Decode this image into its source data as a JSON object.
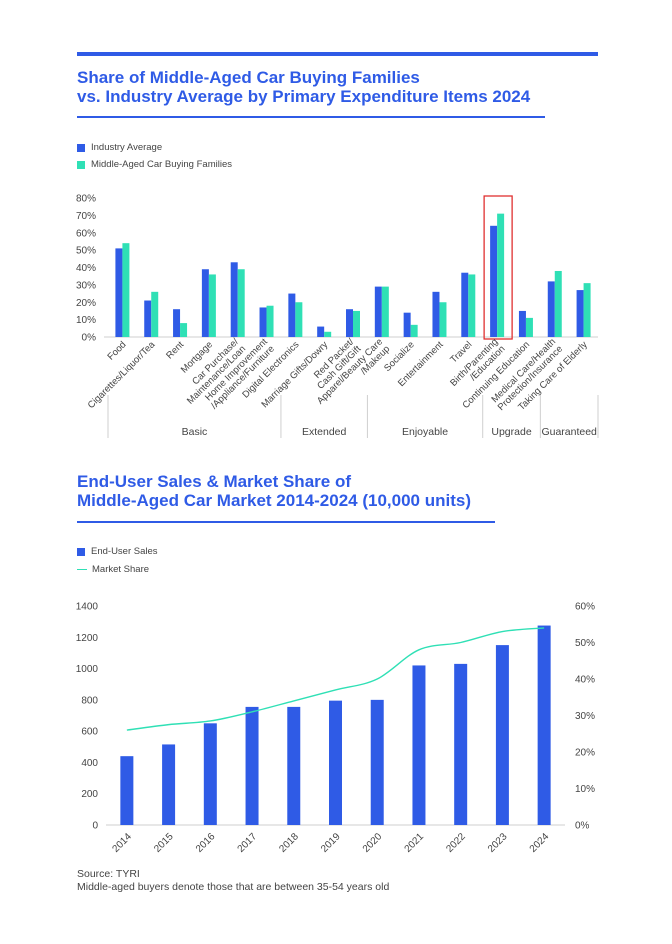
{
  "charts_text": {
    "chart1_title_line1": "Share of Middle-Aged Car Buying Families",
    "chart1_title_line2": "vs. Industry Average by Primary Expenditure Items 2024",
    "chart2_title_line1": "End-User Sales & Market Share of",
    "chart2_title_line2": "Middle-Aged Car Market 2014-2024 (10,000 units)"
  },
  "colors": {
    "industry_average": "#2f5be6",
    "middle_aged": "#2fe0b5",
    "sales_bar": "#2f5be6",
    "market_share_line": "#2fe0b5",
    "highlight_box": "#e03030",
    "title": "#2f5be6"
  },
  "footer": {
    "source": "Source: TYRI",
    "note": "Middle-aged buyers denote those that are between 35-54 years old"
  },
  "chart_data": [
    {
      "type": "bar",
      "title": "Share of Middle-Aged Car Buying Families vs. Industry Average by Primary Expenditure Items 2024",
      "categories": [
        "Food",
        "Cigarettes/Liquor/Tea",
        "Rent",
        "Mortgage",
        "Car Purchase/ Maintenance/Loan",
        "Home Improvement /Appliance/Furniture",
        "Digital Electronics",
        "Marriage Gifts/Dowry",
        "Red Packet/ Cash Gift/Gift",
        "Apparel/Beauty Care /Makeup",
        "Socialize",
        "Entertainment",
        "Travel",
        "Birth/Parenting /Education",
        "Continuing Education",
        "Medical Care/Health Protection/Insurance",
        "Taking Care of Elderly"
      ],
      "category_labels": [
        [
          "Food"
        ],
        [
          "Cigarettes/Liquor/Tea"
        ],
        [
          "Rent"
        ],
        [
          "Mortgage"
        ],
        [
          "Car Purchase/",
          "Maintenance/Loan"
        ],
        [
          "Home Improvement",
          "/Appliance/Furniture"
        ],
        [
          "Digital Electronics"
        ],
        [
          "Marriage Gifts/Dowry"
        ],
        [
          "Red Packet/",
          "Cash Gift/Gift"
        ],
        [
          "Apparel/Beauty Care",
          "/Makeup"
        ],
        [
          "Socialize"
        ],
        [
          "Entertainment"
        ],
        [
          "Travel"
        ],
        [
          "Birth/Parenting",
          "/Education"
        ],
        [
          "Continuing Education"
        ],
        [
          "Medical Care/Health",
          "Protection/Insurance"
        ],
        [
          "Taking Care of Elderly"
        ]
      ],
      "groups": [
        {
          "name": "Basic",
          "start": 0,
          "end": 5
        },
        {
          "name": "Extended",
          "start": 6,
          "end": 8
        },
        {
          "name": "Enjoyable",
          "start": 9,
          "end": 12
        },
        {
          "name": "Upgrade",
          "start": 13,
          "end": 14
        },
        {
          "name": "Guaranteed",
          "start": 15,
          "end": 16
        }
      ],
      "highlight_category": 13,
      "series": [
        {
          "name": "Industry Average",
          "values": [
            51,
            21,
            16,
            39,
            43,
            17,
            25,
            6,
            16,
            29,
            14,
            26,
            37,
            64,
            15,
            32,
            27
          ]
        },
        {
          "name": "Middle-Aged Car Buying Families",
          "values": [
            54,
            26,
            8,
            36,
            39,
            18,
            20,
            3,
            15,
            29,
            7,
            20,
            36,
            71,
            11,
            38,
            31
          ]
        }
      ],
      "ylim": [
        0,
        80
      ],
      "yticks": [
        "0%",
        "10%",
        "20%",
        "30%",
        "40%",
        "50%",
        "60%",
        "70%",
        "80%"
      ],
      "grid": false,
      "legend_position": "top-left"
    },
    {
      "type": "bar",
      "title": "End-User Sales & Market Share of Middle-Aged Car Market 2014-2024 (10,000 units)",
      "categories": [
        "2014",
        "2015",
        "2016",
        "2017",
        "2018",
        "2019",
        "2020",
        "2021",
        "2022",
        "2023",
        "2024"
      ],
      "series": [
        {
          "name": "End-User Sales",
          "type": "bar",
          "axis": "left",
          "values": [
            440,
            515,
            650,
            755,
            755,
            795,
            800,
            1020,
            1030,
            1150,
            1275
          ]
        },
        {
          "name": "Market Share",
          "type": "line",
          "axis": "right",
          "values": [
            26,
            27.5,
            28.5,
            31,
            34,
            37,
            40,
            48,
            50,
            53,
            54
          ]
        }
      ],
      "ylim_left": [
        0,
        1400
      ],
      "ylim_right": [
        0,
        60
      ],
      "yticks_left": [
        "0",
        "200",
        "400",
        "600",
        "800",
        "1000",
        "1200",
        "1400"
      ],
      "yticks_right": [
        "0%",
        "10%",
        "20%",
        "30%",
        "40%",
        "50%",
        "60%"
      ],
      "grid": false,
      "legend_position": "top-left"
    }
  ]
}
